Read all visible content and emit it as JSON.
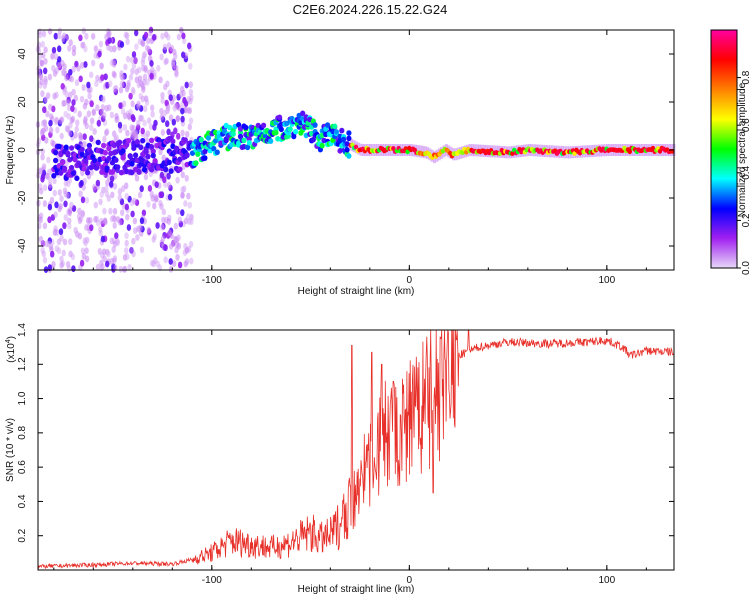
{
  "figure": {
    "title": "C2E6.2024.226.15.22.G24"
  },
  "chart_data": [
    {
      "type": "heatmap",
      "name": "spectrogram",
      "xlabel": "Height of straight line (km)",
      "ylabel": "Frequency (Hz)",
      "xlim": [
        -188,
        134
      ],
      "ylim": [
        -50,
        50
      ],
      "xticks": [
        -100,
        0,
        100
      ],
      "xtick_labels": [
        "-100",
        "0",
        "100"
      ],
      "yticks": [
        -40,
        -20,
        0,
        20,
        40
      ],
      "ytick_labels": [
        "-40",
        "-20",
        "0",
        "20",
        "40"
      ],
      "description_points": {
        "ridge_centre_hz": [
          {
            "x": -170,
            "y": -5
          },
          {
            "x": -150,
            "y": -3
          },
          {
            "x": -130,
            "y": -2
          },
          {
            "x": -110,
            "y": -2
          },
          {
            "x": -100,
            "y": 3
          },
          {
            "x": -90,
            "y": 6
          },
          {
            "x": -80,
            "y": 5
          },
          {
            "x": -70,
            "y": 8
          },
          {
            "x": -60,
            "y": 10
          },
          {
            "x": -55,
            "y": 12
          },
          {
            "x": -50,
            "y": 8
          },
          {
            "x": -45,
            "y": 5
          },
          {
            "x": -38,
            "y": 6
          },
          {
            "x": -32,
            "y": 3
          },
          {
            "x": -25,
            "y": 0
          },
          {
            "x": 0,
            "y": 0
          },
          {
            "x": 8,
            "y": -1
          },
          {
            "x": 12,
            "y": -3
          },
          {
            "x": 18,
            "y": 0
          },
          {
            "x": 22,
            "y": -2
          },
          {
            "x": 30,
            "y": 0
          },
          {
            "x": 50,
            "y": -1
          },
          {
            "x": 60,
            "y": 0
          },
          {
            "x": 80,
            "y": -1
          },
          {
            "x": 100,
            "y": 0
          },
          {
            "x": 134,
            "y": 0
          }
        ]
      }
    },
    {
      "type": "colorbar",
      "name": "amplitude-colorbar",
      "label": "Normalized spectral amplitude",
      "range": [
        0.0,
        1.0
      ],
      "ticks": [
        0.0,
        0.2,
        0.4,
        0.6,
        0.8
      ],
      "tick_labels": [
        "0.0",
        "0.2",
        "0.4",
        "0.6",
        "0.8"
      ],
      "colors": [
        "#e8d8f8",
        "#a020f0",
        "#0000ff",
        "#00ffff",
        "#00ff00",
        "#ffff00",
        "#ff8000",
        "#ff0000",
        "#ff00a0"
      ]
    },
    {
      "type": "line",
      "name": "snr",
      "xlabel": "Height of straight line (km)",
      "ylabel": "SNR (10 * v/v)",
      "scale_label": "(x10",
      "scale_exponent": "4",
      "scale_close": ")",
      "xlim": [
        -188,
        134
      ],
      "ylim": [
        0,
        1.4
      ],
      "xticks": [
        -100,
        0,
        100
      ],
      "xtick_labels": [
        "-100",
        "0",
        "100"
      ],
      "yticks": [
        0.2,
        0.4,
        0.6,
        0.8,
        1.0,
        1.2,
        1.4
      ],
      "ytick_labels": [
        "0.2",
        "0.4",
        "0.6",
        "0.8",
        "1.0",
        "1.2",
        "1.4"
      ],
      "color": "#e8302a",
      "trend": [
        {
          "x": -188,
          "y": 0.02
        },
        {
          "x": -160,
          "y": 0.03
        },
        {
          "x": -140,
          "y": 0.04
        },
        {
          "x": -120,
          "y": 0.035
        },
        {
          "x": -110,
          "y": 0.06
        },
        {
          "x": -100,
          "y": 0.1
        },
        {
          "x": -90,
          "y": 0.17
        },
        {
          "x": -80,
          "y": 0.15
        },
        {
          "x": -70,
          "y": 0.13
        },
        {
          "x": -60,
          "y": 0.16
        },
        {
          "x": -50,
          "y": 0.22
        },
        {
          "x": -45,
          "y": 0.18
        },
        {
          "x": -40,
          "y": 0.2
        },
        {
          "x": -33,
          "y": 0.3
        },
        {
          "x": -25,
          "y": 0.5
        },
        {
          "x": -20,
          "y": 0.62
        },
        {
          "x": -15,
          "y": 0.75
        },
        {
          "x": -10,
          "y": 0.8
        },
        {
          "x": -5,
          "y": 0.78
        },
        {
          "x": 0,
          "y": 0.84
        },
        {
          "x": 5,
          "y": 0.92
        },
        {
          "x": 10,
          "y": 0.96
        },
        {
          "x": 15,
          "y": 1.05
        },
        {
          "x": 20,
          "y": 1.18
        },
        {
          "x": 25,
          "y": 1.25
        },
        {
          "x": 35,
          "y": 1.3
        },
        {
          "x": 50,
          "y": 1.33
        },
        {
          "x": 70,
          "y": 1.32
        },
        {
          "x": 90,
          "y": 1.33
        },
        {
          "x": 100,
          "y": 1.34
        },
        {
          "x": 108,
          "y": 1.3
        },
        {
          "x": 112,
          "y": 1.25
        },
        {
          "x": 120,
          "y": 1.28
        },
        {
          "x": 134,
          "y": 1.27
        }
      ],
      "spikes": [
        {
          "x": -29,
          "y": 1.31
        },
        {
          "x": -19,
          "y": 1.27
        },
        {
          "x": -14,
          "y": 1.2
        },
        {
          "x": -8,
          "y": 1.1
        },
        {
          "x": 12,
          "y": 0.45
        },
        {
          "x": 16,
          "y": 1.35
        },
        {
          "x": 30,
          "y": 1.4
        }
      ]
    }
  ]
}
